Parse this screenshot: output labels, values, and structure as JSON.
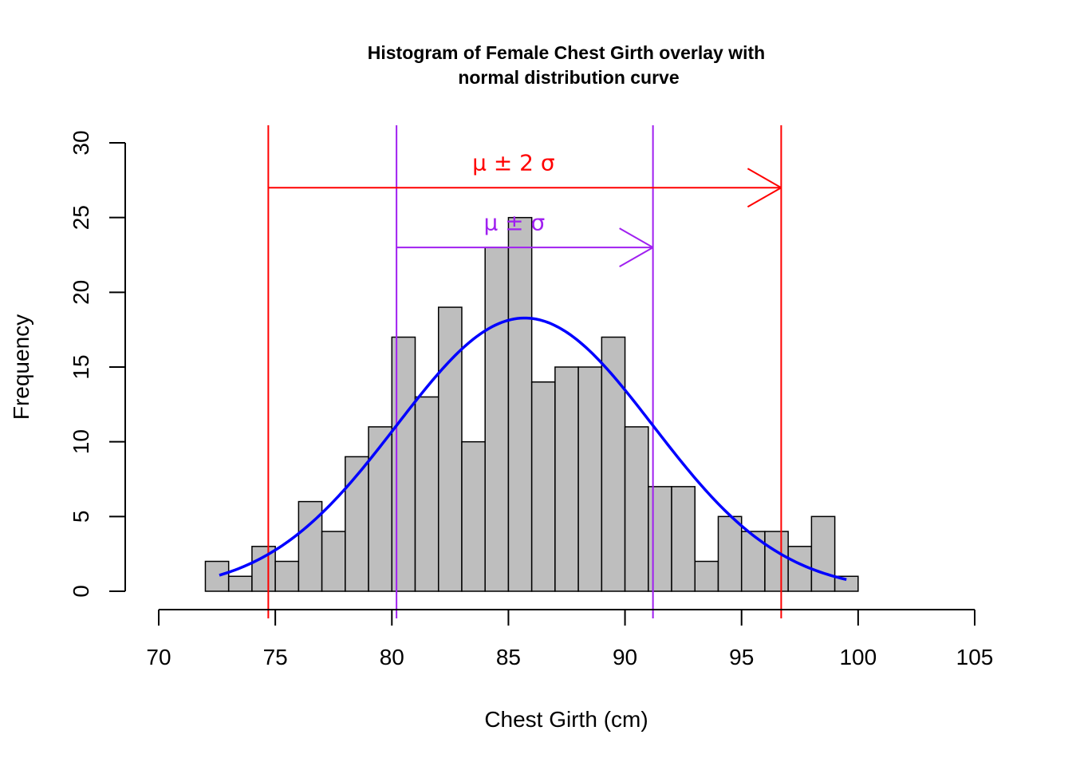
{
  "chart_data": {
    "type": "bar",
    "title_line1": "Histogram of Female Chest Girth overlay with",
    "title_line2": "normal distribution curve",
    "xlabel": "Chest Girth (cm)",
    "ylabel": "Frequency",
    "xlim": [
      70,
      105
    ],
    "ylim": [
      0,
      30
    ],
    "x_ticks": [
      70,
      75,
      80,
      85,
      90,
      95,
      100,
      105
    ],
    "y_ticks": [
      0,
      5,
      10,
      15,
      20,
      25,
      30
    ],
    "bin_width": 1,
    "bin_starts": [
      72,
      73,
      74,
      75,
      76,
      77,
      78,
      79,
      80,
      81,
      82,
      83,
      84,
      85,
      86,
      87,
      88,
      89,
      90,
      91,
      92,
      93,
      94,
      95,
      96,
      97,
      98,
      99
    ],
    "values": [
      2,
      1,
      3,
      2,
      6,
      4,
      9,
      11,
      17,
      13,
      19,
      10,
      23,
      25,
      14,
      15,
      15,
      17,
      11,
      7,
      7,
      2,
      5,
      4,
      4,
      3,
      5,
      1
    ],
    "normal_curve": {
      "mean": 85.7,
      "sd": 5.5,
      "scale": 252,
      "x_from": 72.6,
      "x_to": 99.5
    },
    "vertical_lines": {
      "two_sigma": [
        74.7,
        96.7
      ],
      "one_sigma": [
        80.2,
        91.2
      ]
    },
    "annotations": {
      "two_sigma_label": "μ ± 2 σ",
      "one_sigma_label": "μ ± σ",
      "two_sigma_arrow_y": 27,
      "one_sigma_arrow_y": 23,
      "two_sigma_label_y": 28.7,
      "one_sigma_label_y": 24.7
    },
    "colors": {
      "bar_fill": "#bebebe",
      "bar_stroke": "#000000",
      "curve": "#0000ff",
      "two_sigma": "#ff0000",
      "one_sigma": "#a020f0"
    },
    "grid": false,
    "legend": "none"
  }
}
